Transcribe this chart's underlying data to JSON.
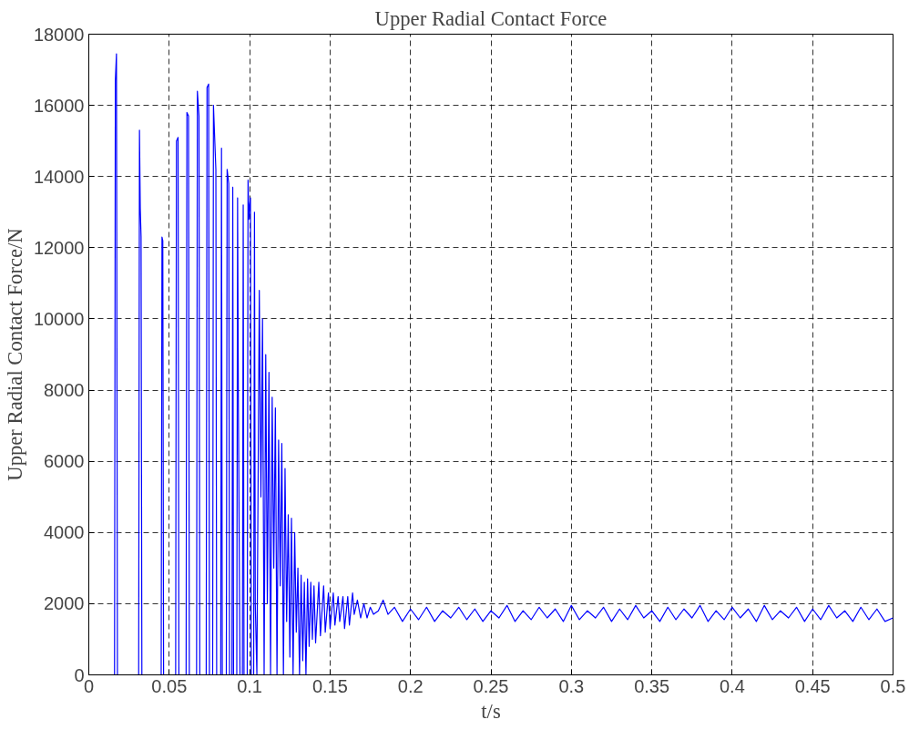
{
  "chart_data": {
    "type": "line",
    "title": "Upper Radial Contact Force",
    "xlabel": "t/s",
    "ylabel": "Upper Radial Contact Force/N",
    "xlim": [
      0,
      0.5
    ],
    "xticks": [
      0,
      0.05,
      0.1,
      0.15,
      0.2,
      0.25,
      0.3,
      0.35,
      0.4,
      0.45,
      0.5
    ],
    "ylim": [
      0,
      18000
    ],
    "yticks": [
      0,
      2000,
      4000,
      6000,
      8000,
      10000,
      12000,
      14000,
      16000,
      18000
    ],
    "grid": true,
    "line_style": "solid",
    "series": [
      {
        "color": "#0000ff",
        "x": [
          0,
          0.016,
          0.0165,
          0.0172,
          0.0178,
          0.031,
          0.0315,
          0.032,
          0.0325,
          0.033,
          0.045,
          0.0455,
          0.046,
          0.0465,
          0.054,
          0.0545,
          0.0555,
          0.056,
          0.0605,
          0.061,
          0.062,
          0.0625,
          0.067,
          0.0675,
          0.0685,
          0.069,
          0.073,
          0.0735,
          0.0745,
          0.075,
          0.077,
          0.0775,
          0.079,
          0.0795,
          0.082,
          0.0825,
          0.083,
          0.0855,
          0.086,
          0.087,
          0.0875,
          0.089,
          0.0895,
          0.09,
          0.092,
          0.0925,
          0.093,
          0.094,
          0.0955,
          0.096,
          0.0965,
          0.0985,
          0.099,
          0.0995,
          0.1,
          0.1005,
          0.101,
          0.1025,
          0.103,
          0.1035,
          0.1045,
          0.106,
          0.107,
          0.108,
          0.109,
          0.11,
          0.111,
          0.112,
          0.113,
          0.114,
          0.115,
          0.116,
          0.117,
          0.118,
          0.119,
          0.12,
          0.121,
          0.122,
          0.123,
          0.124,
          0.125,
          0.126,
          0.127,
          0.128,
          0.129,
          0.13,
          0.131,
          0.132,
          0.133,
          0.134,
          0.135,
          0.136,
          0.137,
          0.138,
          0.139,
          0.14,
          0.141,
          0.143,
          0.144,
          0.146,
          0.147,
          0.149,
          0.15,
          0.152,
          0.153,
          0.155,
          0.156,
          0.158,
          0.159,
          0.161,
          0.162,
          0.164,
          0.165,
          0.167,
          0.169,
          0.171,
          0.173,
          0.175,
          0.177,
          0.18,
          0.183,
          0.186,
          0.19,
          0.195,
          0.2,
          0.205,
          0.21,
          0.215,
          0.22,
          0.225,
          0.23,
          0.235,
          0.24,
          0.245,
          0.25,
          0.255,
          0.26,
          0.265,
          0.27,
          0.275,
          0.28,
          0.285,
          0.29,
          0.295,
          0.3,
          0.305,
          0.31,
          0.315,
          0.32,
          0.325,
          0.33,
          0.335,
          0.34,
          0.345,
          0.35,
          0.355,
          0.36,
          0.365,
          0.37,
          0.375,
          0.38,
          0.385,
          0.39,
          0.395,
          0.4,
          0.405,
          0.41,
          0.415,
          0.42,
          0.425,
          0.43,
          0.435,
          0.44,
          0.445,
          0.45,
          0.455,
          0.46,
          0.465,
          0.47,
          0.475,
          0.48,
          0.485,
          0.49,
          0.495,
          0.5
        ],
        "values": [
          0,
          0,
          16700,
          17450,
          0,
          0,
          15300,
          13100,
          12300,
          0,
          0,
          12300,
          12200,
          0,
          0,
          15000,
          15100,
          0,
          0,
          15800,
          15700,
          0,
          0,
          16400,
          15700,
          0,
          0,
          16500,
          16600,
          0,
          0,
          16000,
          14200,
          0,
          0,
          14800,
          0,
          0,
          14200,
          13800,
          0,
          0,
          13700,
          0,
          0,
          13400,
          7600,
          0,
          0,
          13200,
          0,
          0,
          13900,
          12800,
          13200,
          13400,
          0,
          0,
          13000,
          2000,
          0,
          10800,
          5000,
          10000,
          0,
          9000,
          2000,
          8500,
          0,
          7800,
          3000,
          7500,
          0,
          6600,
          2500,
          6500,
          0,
          5800,
          1500,
          4500,
          500,
          4400,
          0,
          4000,
          1200,
          3000,
          0,
          2800,
          400,
          2600,
          0,
          2700,
          800,
          2600,
          1000,
          2500,
          900,
          2600,
          1100,
          2500,
          1200,
          2300,
          1300,
          2300,
          1400,
          2200,
          1500,
          2200,
          1300,
          2200,
          1400,
          2300,
          1700,
          2100,
          1600,
          2000,
          1600,
          1900,
          1700,
          1800,
          2100,
          1700,
          1900,
          1500,
          1850,
          1550,
          1900,
          1500,
          1800,
          1600,
          1900,
          1550,
          1850,
          1500,
          1800,
          1600,
          1950,
          1500,
          1800,
          1550,
          1900,
          1600,
          1850,
          1500,
          1950,
          1550,
          1800,
          1600,
          1900,
          1500,
          1850,
          1550,
          1950,
          1600,
          1800,
          1500,
          1900,
          1550,
          1850,
          1600,
          1950,
          1500,
          1800,
          1550,
          1900,
          1600,
          1850,
          1500,
          1950,
          1550,
          1800,
          1600,
          1900,
          1500,
          1850,
          1550,
          1950,
          1600,
          1800,
          1500,
          1900,
          1550,
          1850,
          1500,
          1600
        ]
      }
    ]
  }
}
